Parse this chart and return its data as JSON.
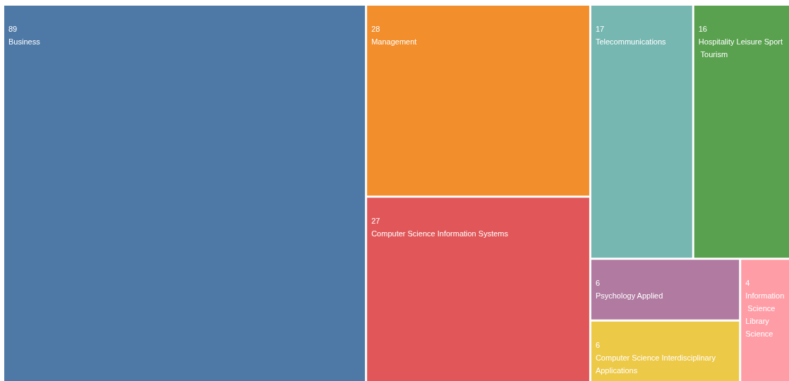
{
  "chart_data": {
    "type": "other",
    "categories": [
      "Business",
      "Management",
      "Computer Science Information Systems",
      "Telecommunications",
      "Hospitality Leisure Sport Tourism",
      "Computer Science Interdisciplinary Applications",
      "Psychology Applied",
      "Information Science Library Science"
    ],
    "values": [
      89,
      28,
      27,
      17,
      16,
      6,
      6,
      4
    ],
    "colors": [
      "#4e79a7",
      "#f28e2b",
      "#e15759",
      "#76b7b2",
      "#59a14f",
      "#edc948",
      "#b07aa1",
      "#ff9da7"
    ],
    "data_labels": true
  }
}
